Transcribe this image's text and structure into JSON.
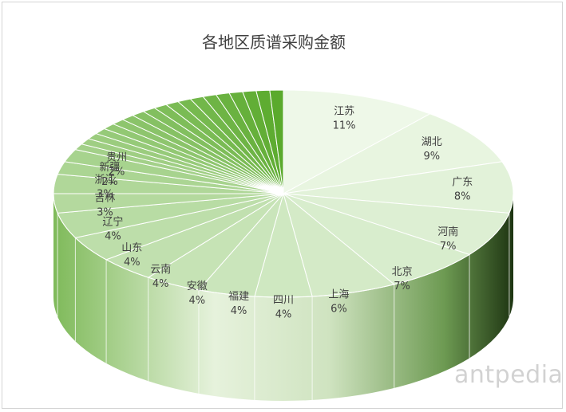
{
  "chart_data": {
    "type": "pie",
    "title": "各地区质谱采购金额",
    "categories": [
      "江苏",
      "湖北",
      "广东",
      "河南",
      "北京",
      "上海",
      "四川",
      "福建",
      "安徽",
      "云南",
      "山东",
      "辽宁",
      "吉林",
      "浙江",
      "新疆",
      "贵州"
    ],
    "values": [
      11,
      9,
      8,
      7,
      7,
      6,
      4,
      4,
      4,
      4,
      4,
      4,
      3,
      3,
      2,
      2
    ],
    "value_labels": [
      "11%",
      "9%",
      "8%",
      "7%",
      "7%",
      "6%",
      "4%",
      "4%",
      "4%",
      "4%",
      "4%",
      "4%",
      "3%",
      "3%",
      "2%",
      "2%"
    ],
    "unlabeled_slices": 19,
    "unlabeled_total_percent": 18,
    "style": "3d-exploded-pie",
    "colors": {
      "light": "#eef8e8",
      "dark": "#5aaa2c",
      "edge": "#ffffff"
    }
  },
  "watermark": "antpedia"
}
